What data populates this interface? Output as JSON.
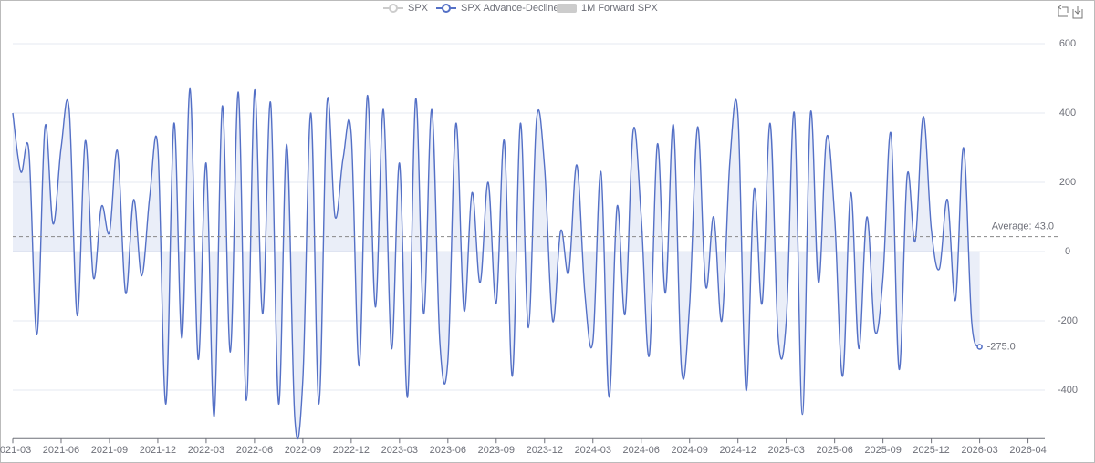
{
  "chart_data": {
    "type": "line",
    "legend": [
      "SPX",
      "SPX Advance-Decline",
      "1M Forward SPX"
    ],
    "inactive_color": "#cccccc",
    "categories": [
      "2021-03",
      null,
      null,
      null,
      null,
      null,
      "2021-06",
      null,
      null,
      null,
      null,
      null,
      "2021-09",
      null,
      null,
      null,
      null,
      null,
      "2021-12",
      null,
      null,
      null,
      null,
      null,
      "2022-03",
      null,
      null,
      null,
      null,
      null,
      "2022-06",
      null,
      null,
      null,
      null,
      null,
      "2022-09",
      null,
      null,
      null,
      null,
      null,
      "2022-12",
      null,
      null,
      null,
      null,
      null,
      "2023-03",
      null,
      null,
      null,
      null,
      null,
      "2023-06",
      null,
      null,
      null,
      null,
      null,
      "2023-09",
      null,
      null,
      null,
      null,
      null,
      "2023-12",
      null,
      null,
      null,
      null,
      null,
      "2024-03",
      null,
      null,
      null,
      null,
      null,
      "2024-06",
      null,
      null,
      null,
      null,
      null,
      "2024-09",
      null,
      null,
      null,
      null,
      null,
      "2024-12",
      null,
      null,
      null,
      null,
      null,
      "2025-03",
      null,
      null,
      null,
      null,
      null,
      "2025-06",
      null,
      null,
      null,
      null,
      null,
      "2025-09",
      null,
      null,
      null,
      null,
      null,
      "2025-12",
      null,
      null,
      null,
      null,
      null,
      "2026-03",
      null,
      null,
      null,
      null,
      null,
      "2026-04"
    ],
    "series": [
      {
        "name": "SPX Advance-Decline",
        "color": "#5470c6",
        "area_color": "rgba(84,112,198,0.12)",
        "values": [
          400,
          230,
          290,
          -240,
          360,
          80,
          300,
          410,
          -185,
          320,
          -75,
          130,
          55,
          290,
          -120,
          150,
          -70,
          160,
          300,
          -440,
          370,
          -250,
          470,
          -310,
          255,
          -475,
          420,
          -290,
          460,
          -430,
          465,
          -180,
          430,
          -440,
          310,
          -480,
          -370,
          400,
          -440,
          430,
          100,
          270,
          340,
          -330,
          450,
          -160,
          410,
          -280,
          255,
          -420,
          440,
          -180,
          410,
          -260,
          -315,
          370,
          -170,
          170,
          -90,
          200,
          -150,
          320,
          -360,
          370,
          -220,
          380,
          245,
          -200,
          60,
          -60,
          250,
          -120,
          -260,
          230,
          -420,
          130,
          -180,
          350,
          100,
          -300,
          310,
          -120,
          365,
          -340,
          -155,
          360,
          -100,
          100,
          -200,
          260,
          395,
          -400,
          180,
          -150,
          370,
          -250,
          -200,
          400,
          -470,
          400,
          -90,
          330,
          100,
          -360,
          170,
          -280,
          100,
          -230,
          -75,
          340,
          -340,
          220,
          30,
          390,
          65,
          -50,
          150,
          -140,
          300,
          -200,
          -275,
          null,
          null,
          null,
          null,
          null,
          null
        ],
        "end_label": "-275.0"
      }
    ],
    "average": {
      "value": 43,
      "label": "Average: 43.0"
    },
    "ylim": [
      -540,
      600
    ],
    "yticks": [
      -400,
      -200,
      0,
      200,
      400,
      600
    ],
    "grid": true
  }
}
